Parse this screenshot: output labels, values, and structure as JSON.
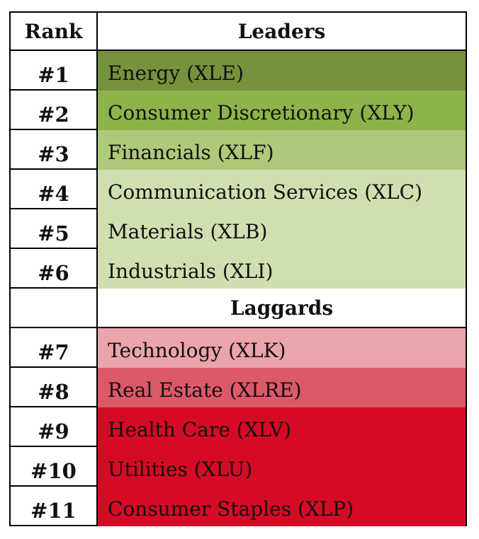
{
  "header": {
    "rank": "Rank",
    "leaders": "Leaders"
  },
  "leaders": [
    {
      "rank": "#1",
      "sector": "Energy (XLE)",
      "color": "#76923c"
    },
    {
      "rank": "#2",
      "sector": "Consumer Discretionary (XLY)",
      "color": "#8db34a"
    },
    {
      "rank": "#3",
      "sector": "Financials (XLF)",
      "color": "#afc97a"
    },
    {
      "rank": "#4",
      "sector": "Communication Services (XLC)",
      "color": "#d0dfb0"
    },
    {
      "rank": "#5",
      "sector": "Materials (XLB)",
      "color": "#d0dfb0"
    },
    {
      "rank": "#6",
      "sector": "Industrials (XLI)",
      "color": "#d0dfb0"
    }
  ],
  "laggards_header": "Laggards",
  "laggards": [
    {
      "rank": "#7",
      "sector": "Technology (XLK)",
      "color": "#eaa4aa"
    },
    {
      "rank": "#8",
      "sector": "Real Estate (XLRE)",
      "color": "#db5968"
    },
    {
      "rank": "#9",
      "sector": "Health Care (XLV)",
      "color": "#d50a25"
    },
    {
      "rank": "#10",
      "sector": "Utilities (XLU)",
      "color": "#d50a25"
    },
    {
      "rank": "#11",
      "sector": "Consumer Staples (XLP)",
      "color": "#d50a25"
    }
  ]
}
